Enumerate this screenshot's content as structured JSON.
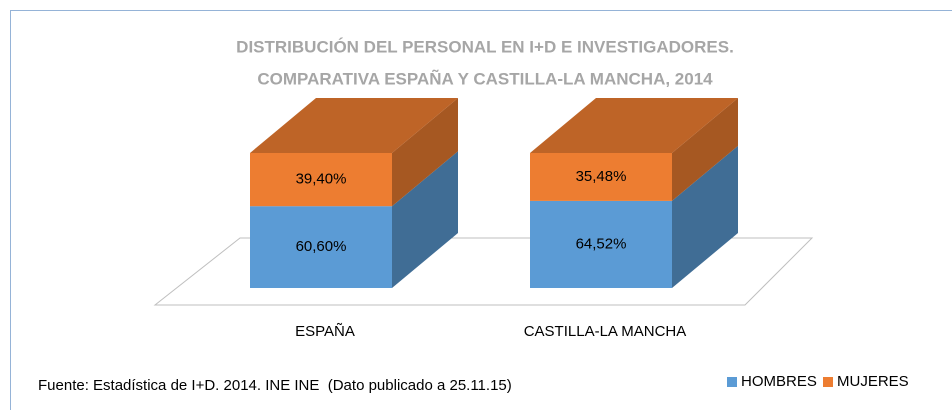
{
  "chart_data": {
    "type": "bar3d_stacked",
    "title": [
      "DISTRIBUCIÓN DEL PERSONAL EN I+D E INVESTIGADORES.",
      "COMPARATIVA ESPAÑA Y CASTILLA-LA MANCHA, 2014"
    ],
    "categories": [
      "ESPAÑA",
      "CASTILLA-LA MANCHA"
    ],
    "series": [
      {
        "name": "HOMBRES",
        "color": "#5b9bd5",
        "values": [
          60.6,
          64.52
        ],
        "value_labels": [
          "60,60%",
          "64,52%"
        ]
      },
      {
        "name": "MUJERES",
        "color": "#ed7d31",
        "values": [
          39.4,
          35.48
        ],
        "value_labels": [
          "39,40%",
          "35,48%"
        ]
      }
    ],
    "source": "Fuente: Estadística de I+D. 2014. INE INE  (Dato publicado a 25.11.15)"
  }
}
